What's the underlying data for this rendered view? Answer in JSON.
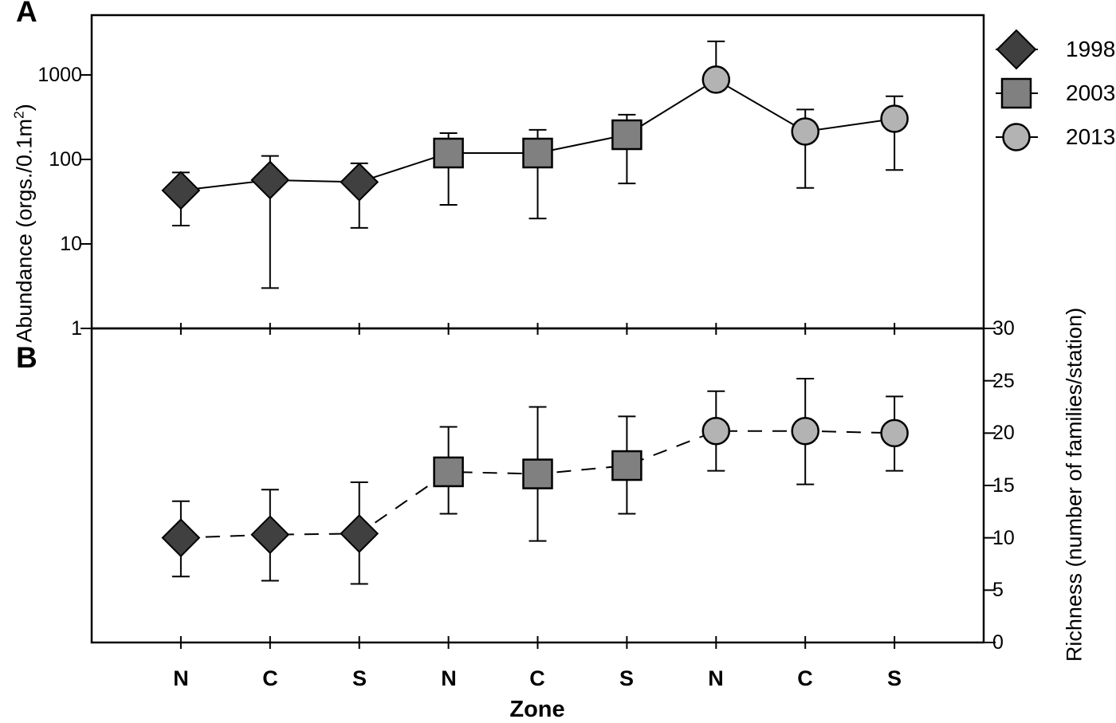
{
  "figure": {
    "panels": {
      "a_letter": "A",
      "b_letter": "B"
    },
    "x_axis": {
      "label": "Zone",
      "zone_labels": [
        "N",
        "C",
        "S",
        "N",
        "C",
        "S",
        "N",
        "C",
        "S"
      ]
    },
    "left_axis": {
      "label_prefix": "Abundance (orgs./0.1m",
      "label_sup": "2",
      "label_suffix": ")",
      "tick_labels": [
        "1000",
        "100",
        "10",
        "1"
      ]
    },
    "right_axis": {
      "label": "Richness (number of families/station)",
      "tick_labels": [
        "30",
        "25",
        "20",
        "15",
        "10",
        "5",
        "0"
      ]
    },
    "legend": [
      {
        "label": "1998"
      },
      {
        "label": "2003"
      },
      {
        "label": "2013"
      }
    ]
  },
  "colors": {
    "series_1998": "#404040",
    "series_2003": "#808080",
    "series_2013": "#b3b3b3",
    "axis": "#000000",
    "background": "#ffffff"
  },
  "chart_data": [
    {
      "type": "line",
      "panel": "A",
      "y_axis_side": "left",
      "y_scale": "log",
      "ylabel": "Abundance (orgs./0.1m2)",
      "ylim": [
        1,
        5200
      ],
      "yticks": [
        1,
        10,
        100,
        1000
      ],
      "line_style": "solid",
      "categories": [
        "N",
        "C",
        "S",
        "N",
        "C",
        "S",
        "N",
        "C",
        "S"
      ],
      "series": [
        {
          "name": "1998",
          "marker": "diamond",
          "color": "#404040",
          "points": [
            {
              "slot": 0,
              "zone": "N",
              "value": 43,
              "err_lo": 16.5,
              "err_hi": 70
            },
            {
              "slot": 1,
              "zone": "C",
              "value": 57,
              "err_lo": 3,
              "err_hi": 110
            },
            {
              "slot": 2,
              "zone": "S",
              "value": 54,
              "err_lo": 15.5,
              "err_hi": 90
            }
          ]
        },
        {
          "name": "2003",
          "marker": "square",
          "color": "#808080",
          "points": [
            {
              "slot": 3,
              "zone": "N",
              "value": 119,
              "err_lo": 29,
              "err_hi": 205
            },
            {
              "slot": 4,
              "zone": "C",
              "value": 119,
              "err_lo": 20,
              "err_hi": 224
            },
            {
              "slot": 5,
              "zone": "S",
              "value": 196,
              "err_lo": 52,
              "err_hi": 338
            }
          ]
        },
        {
          "name": "2013",
          "marker": "circle",
          "color": "#b3b3b3",
          "points": [
            {
              "slot": 6,
              "zone": "N",
              "value": 880,
              "err_lo": null,
              "err_hi": 2500
            },
            {
              "slot": 7,
              "zone": "C",
              "value": 214,
              "err_lo": 46,
              "err_hi": 390
            },
            {
              "slot": 8,
              "zone": "S",
              "value": 303,
              "err_lo": 75,
              "err_hi": 560
            }
          ]
        }
      ]
    },
    {
      "type": "line",
      "panel": "B",
      "y_axis_side": "right",
      "y_scale": "linear",
      "ylabel": "Richness (number of families/station)",
      "ylim": [
        0,
        30
      ],
      "yticks": [
        0,
        5,
        10,
        15,
        20,
        25,
        30
      ],
      "line_style": "dashed",
      "categories": [
        "N",
        "C",
        "S",
        "N",
        "C",
        "S",
        "N",
        "C",
        "S"
      ],
      "series": [
        {
          "name": "1998",
          "marker": "diamond",
          "color": "#404040",
          "points": [
            {
              "slot": 0,
              "zone": "N",
              "value": 10,
              "err_lo": 6.3,
              "err_hi": 13.5
            },
            {
              "slot": 1,
              "zone": "C",
              "value": 10.3,
              "err_lo": 5.9,
              "err_hi": 14.6
            },
            {
              "slot": 2,
              "zone": "S",
              "value": 10.4,
              "err_lo": 5.6,
              "err_hi": 15.3
            }
          ]
        },
        {
          "name": "2003",
          "marker": "square",
          "color": "#808080",
          "points": [
            {
              "slot": 3,
              "zone": "N",
              "value": 16.3,
              "err_lo": 12.3,
              "err_hi": 20.6
            },
            {
              "slot": 4,
              "zone": "C",
              "value": 16.1,
              "err_lo": 9.7,
              "err_hi": 22.5
            },
            {
              "slot": 5,
              "zone": "S",
              "value": 16.9,
              "err_lo": 12.3,
              "err_hi": 21.6
            }
          ]
        },
        {
          "name": "2013",
          "marker": "circle",
          "color": "#b3b3b3",
          "points": [
            {
              "slot": 6,
              "zone": "N",
              "value": 20.2,
              "err_lo": 16.4,
              "err_hi": 24
            },
            {
              "slot": 7,
              "zone": "C",
              "value": 20.2,
              "err_lo": 15.1,
              "err_hi": 25.2
            },
            {
              "slot": 8,
              "zone": "S",
              "value": 20,
              "err_lo": 16.4,
              "err_hi": 23.5
            }
          ]
        }
      ]
    }
  ]
}
